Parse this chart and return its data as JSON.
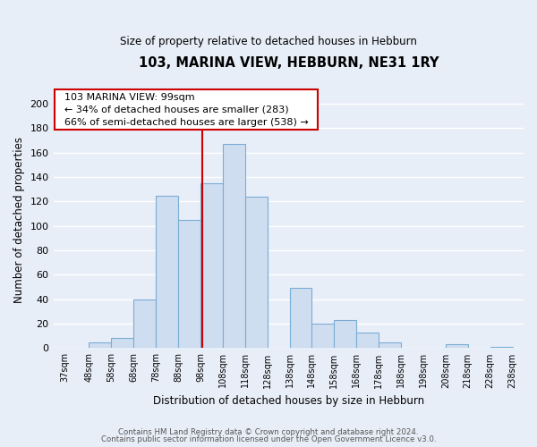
{
  "title": "103, MARINA VIEW, HEBBURN, NE31 1RY",
  "subtitle": "Size of property relative to detached houses in Hebburn",
  "xlabel": "Distribution of detached houses by size in Hebburn",
  "ylabel": "Number of detached properties",
  "bar_left_edges": [
    37,
    48,
    58,
    68,
    78,
    88,
    98,
    108,
    118,
    128,
    138,
    148,
    158,
    168,
    178,
    188,
    198,
    208,
    218,
    228
  ],
  "bar_widths": [
    11,
    10,
    10,
    10,
    10,
    10,
    10,
    10,
    10,
    10,
    10,
    10,
    10,
    10,
    10,
    10,
    10,
    10,
    10,
    10
  ],
  "bar_heights": [
    0,
    5,
    8,
    40,
    125,
    105,
    135,
    167,
    124,
    0,
    49,
    20,
    23,
    13,
    5,
    0,
    0,
    3,
    0,
    1
  ],
  "bar_color": "#cfddf0",
  "bar_edge_color": "#7aadd4",
  "ylim": [
    0,
    210
  ],
  "yticks": [
    0,
    20,
    40,
    60,
    80,
    100,
    120,
    140,
    160,
    180,
    200
  ],
  "x_tick_labels": [
    "37sqm",
    "48sqm",
    "58sqm",
    "68sqm",
    "78sqm",
    "88sqm",
    "98sqm",
    "108sqm",
    "118sqm",
    "128sqm",
    "138sqm",
    "148sqm",
    "158sqm",
    "168sqm",
    "178sqm",
    "188sqm",
    "198sqm",
    "208sqm",
    "218sqm",
    "228sqm",
    "238sqm"
  ],
  "annotation_title": "103 MARINA VIEW: 99sqm",
  "annotation_line1": "← 34% of detached houses are smaller (283)",
  "annotation_line2": "66% of semi-detached houses are larger (538) →",
  "annotation_box_color": "#ffffff",
  "annotation_border_color": "#cc0000",
  "property_line_x": 99,
  "property_line_color": "#cc0000",
  "footnote1": "Contains HM Land Registry data © Crown copyright and database right 2024.",
  "footnote2": "Contains public sector information licensed under the Open Government Licence v3.0.",
  "background_color": "#e8eef8",
  "grid_color": "#ffffff",
  "xlim_left": 32,
  "xlim_right": 243
}
